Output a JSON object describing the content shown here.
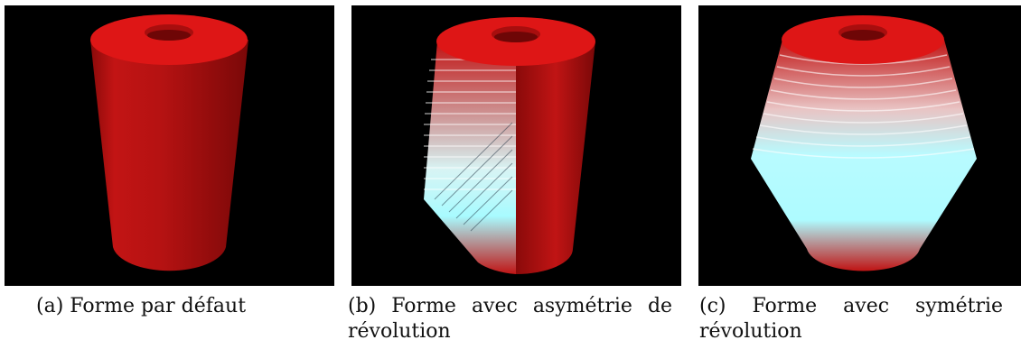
{
  "figures": [
    {
      "id": "a",
      "caption_line1": "(a) Forme par défaut",
      "colors": {
        "body": "#c01212",
        "top": "#e01818"
      }
    },
    {
      "id": "b",
      "caption_line1": "(b) Forme avec asymétrie de",
      "caption_line2": "révolution",
      "colors": {
        "body": "#c01212",
        "highlight": "#9ffcff"
      }
    },
    {
      "id": "c",
      "caption_line1": "(c) Forme avec symétrie de",
      "caption_line2": "révolution",
      "colors": {
        "body": "#c01212",
        "highlight": "#9ffcff"
      }
    }
  ]
}
